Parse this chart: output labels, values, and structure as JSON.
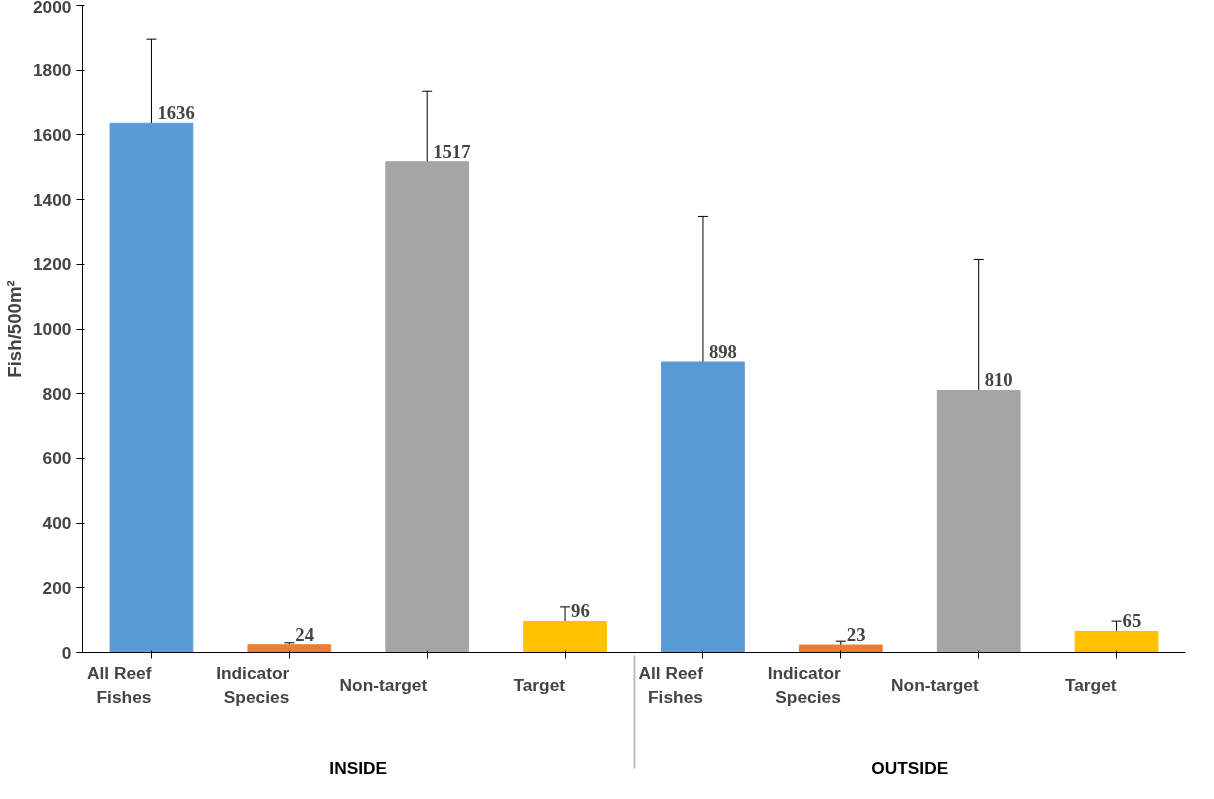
{
  "chart_data": {
    "type": "bar",
    "ylabel": "Fish/500m²",
    "categories": [
      "All Reef Fishes",
      "Indicator Species",
      "Non-target",
      "Target",
      "All Reef Fishes",
      "Indicator Species",
      "Non-target",
      "Target"
    ],
    "values": [
      1636,
      24,
      1517,
      96,
      898,
      23,
      810,
      65
    ],
    "colors": [
      "#5b9bd5",
      "#ed7d31",
      "#a5a5a5",
      "#ffc000",
      "#5b9bd5",
      "#ed7d31",
      "#a5a5a5",
      "#ffc000"
    ],
    "errors": [
      260,
      6,
      218,
      45,
      450,
      12,
      405,
      32
    ],
    "ylim": [
      0,
      2000
    ],
    "yticks": [
      0,
      200,
      400,
      600,
      800,
      1000,
      1200,
      1400,
      1600,
      1800,
      2000
    ],
    "data_labels": true,
    "grid": false,
    "annotations": [
      "INSIDE",
      "OUTSIDE"
    ]
  }
}
